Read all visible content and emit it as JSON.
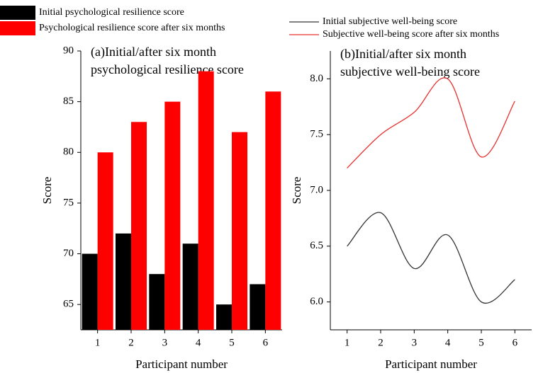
{
  "chart_data": [
    {
      "type": "bar",
      "title": [
        "(a)Initial/after six month",
        "psychological resilience score"
      ],
      "x_label": "Participant number",
      "y_label": "Score",
      "categories": [
        "1",
        "2",
        "3",
        "4",
        "5",
        "6"
      ],
      "series": [
        {
          "name": "Initial psychological resilience score",
          "color": "#000000",
          "values": [
            70,
            72,
            68,
            71,
            65,
            67
          ]
        },
        {
          "name": "Psychological resilience score after six months",
          "color": "#ff0000",
          "values": [
            80,
            83,
            85,
            88,
            82,
            86
          ]
        }
      ],
      "ylim": [
        62.5,
        90
      ],
      "yticks": [
        65,
        70,
        75,
        80,
        85,
        90
      ]
    },
    {
      "type": "line",
      "title": [
        "(b)Initial/after six month",
        "subjective well-being score"
      ],
      "x_label": "Participant number",
      "y_label": "Score",
      "x": [
        1,
        2,
        3,
        4,
        5,
        6
      ],
      "series": [
        {
          "name": "Initial subjective well-being score",
          "color": "#333333",
          "values": [
            6.5,
            6.8,
            6.3,
            6.6,
            6.0,
            6.2
          ]
        },
        {
          "name": "Subjective well-being score after six months",
          "color": "#e8302e",
          "values": [
            7.2,
            7.5,
            7.7,
            8.0,
            7.3,
            7.8
          ]
        }
      ],
      "xlim": [
        0.5,
        6.5
      ],
      "xticks": [
        1,
        2,
        3,
        4,
        5,
        6
      ],
      "ylim": [
        5.75,
        8.25
      ],
      "yticks": [
        {
          "value": 6,
          "label": "6.0"
        },
        6.5,
        {
          "value": 7,
          "label": "7.0"
        },
        7.5,
        {
          "value": 8,
          "label": "8.0"
        }
      ]
    }
  ]
}
